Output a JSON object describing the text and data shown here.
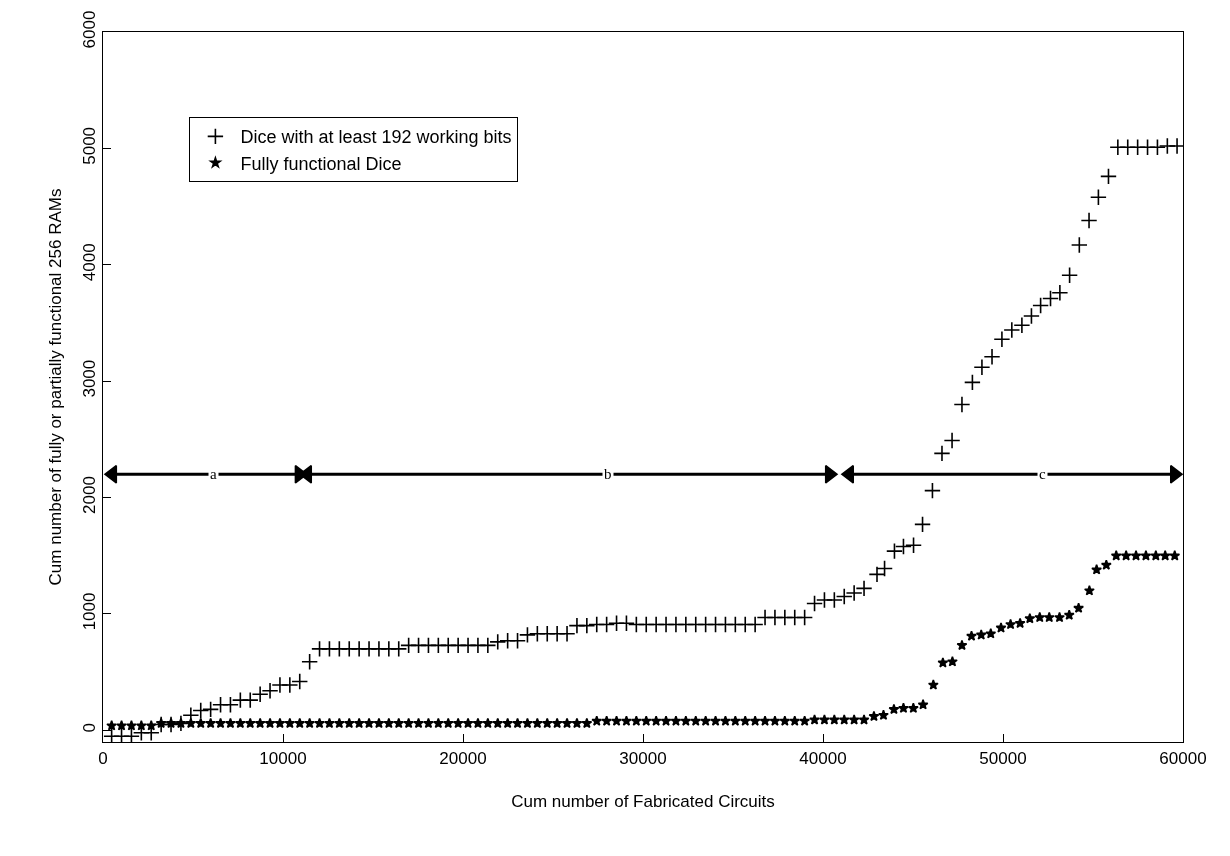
{
  "chart_data": {
    "type": "scatter",
    "xlabel": "Cum number of Fabricated Circuits",
    "ylabel": "Cum number of fully or partially functional 256 RAMs",
    "xlim": [
      0,
      60000
    ],
    "xticks": [
      0,
      10000,
      20000,
      30000,
      40000,
      50000,
      60000
    ],
    "ylim": [
      -100,
      6000
    ],
    "yticks": [
      0,
      1000,
      2000,
      3000,
      4000,
      5000,
      6000
    ],
    "legend": "top left",
    "series": [
      {
        "name": "Dice with at least 192 working bits",
        "color": "#000000",
        "marker": "cross",
        "x": [
          480,
          1030,
          1580,
          2130,
          2680,
          3230,
          3780,
          4330,
          4880,
          5430,
          5980,
          6530,
          7080,
          7630,
          8180,
          8730,
          9280,
          9830,
          10380,
          10930,
          11480,
          12030,
          12580,
          13130,
          13680,
          14230,
          14780,
          15330,
          15880,
          16430,
          16980,
          17530,
          18080,
          18630,
          19180,
          19730,
          20280,
          20830,
          21380,
          21930,
          22480,
          23030,
          23580,
          24130,
          24680,
          25230,
          25780,
          26330,
          26880,
          27430,
          27980,
          28530,
          29080,
          29630,
          30180,
          30730,
          31280,
          31830,
          32380,
          32930,
          33480,
          34030,
          34580,
          35130,
          35680,
          36230,
          36780,
          37330,
          37880,
          38430,
          38980,
          39530,
          40080,
          40630,
          41180,
          41730,
          42280,
          43000,
          43420,
          43970,
          44470,
          45030,
          45530,
          46080,
          46610,
          47170,
          47720,
          48300,
          48830,
          49390,
          49940,
          50490,
          51050,
          51580,
          52090,
          52640,
          53160,
          53700,
          54240,
          54780,
          55300,
          55860,
          56380,
          56930,
          57480,
          58030,
          58580,
          59130,
          59670
        ],
        "values": [
          -50,
          -50,
          -50,
          -20,
          -20,
          50,
          50,
          60,
          130,
          170,
          180,
          220,
          220,
          260,
          260,
          310,
          340,
          390,
          390,
          420,
          590,
          700,
          700,
          700,
          700,
          700,
          700,
          700,
          700,
          700,
          730,
          730,
          730,
          730,
          730,
          730,
          730,
          730,
          730,
          760,
          770,
          770,
          820,
          830,
          830,
          830,
          830,
          900,
          900,
          910,
          910,
          920,
          920,
          910,
          910,
          910,
          910,
          910,
          910,
          910,
          910,
          910,
          910,
          910,
          910,
          910,
          970,
          970,
          970,
          970,
          970,
          1090,
          1120,
          1120,
          1150,
          1180,
          1220,
          1340,
          1390,
          1540,
          1580,
          1590,
          1770,
          2060,
          2380,
          2490,
          2800,
          2990,
          3120,
          3210,
          3360,
          3440,
          3480,
          3560,
          3650,
          3710,
          3760,
          3910,
          4170,
          4380,
          4580,
          4760,
          5010,
          5010,
          5010,
          5010,
          5010,
          5020,
          5020
        ]
      },
      {
        "type": "line",
        "color": "#000000",
        "marker": "triangle",
        "x": [
          530,
          10900
        ],
        "values": [
          2200,
          2200
        ]
      },
      {
        "type": "line",
        "color": "#000000",
        "marker": "triangle",
        "x": [
          11360,
          40360
        ],
        "values": [
          2200,
          2200
        ]
      },
      {
        "type": "line",
        "color": "#000000",
        "marker": "triangle",
        "x": [
          41470,
          59530
        ],
        "values": [
          2200,
          2200
        ]
      },
      {
        "name": "Fully functional Dice",
        "color": "#000000",
        "marker": "star",
        "x": [
          480,
          1030,
          1580,
          2130,
          2680,
          3230,
          3780,
          4330,
          4880,
          5430,
          5980,
          6530,
          7080,
          7630,
          8180,
          8730,
          9280,
          9830,
          10380,
          10930,
          11480,
          12030,
          12580,
          13130,
          13680,
          14230,
          14780,
          15330,
          15880,
          16430,
          16980,
          17530,
          18080,
          18630,
          19180,
          19730,
          20280,
          20830,
          21380,
          21930,
          22480,
          23030,
          23580,
          24130,
          24680,
          25230,
          25780,
          26330,
          26880,
          27430,
          27980,
          28530,
          29080,
          29630,
          30180,
          30730,
          31280,
          31830,
          32380,
          32930,
          33480,
          34030,
          34580,
          35130,
          35680,
          36230,
          36780,
          37330,
          37880,
          38430,
          38980,
          39530,
          40080,
          40630,
          41180,
          41730,
          42280,
          42830,
          43360,
          43940,
          44470,
          45020,
          45560,
          46130,
          46660,
          47190,
          47720,
          48250,
          48790,
          49320,
          49890,
          50420,
          50950,
          51490,
          52040,
          52570,
          53140,
          53680,
          54200,
          54800,
          55200,
          55740,
          56290,
          56840,
          57390,
          57940,
          58490,
          59010,
          59540
        ],
        "values": [
          40,
          40,
          40,
          40,
          40,
          60,
          60,
          60,
          60,
          60,
          60,
          60,
          60,
          60,
          60,
          60,
          60,
          60,
          60,
          60,
          60,
          60,
          60,
          60,
          60,
          60,
          60,
          60,
          60,
          60,
          60,
          60,
          60,
          60,
          60,
          60,
          60,
          60,
          60,
          60,
          60,
          60,
          60,
          60,
          60,
          60,
          60,
          60,
          60,
          80,
          80,
          80,
          80,
          80,
          80,
          80,
          80,
          80,
          80,
          80,
          80,
          80,
          80,
          80,
          80,
          80,
          80,
          80,
          80,
          80,
          80,
          90,
          90,
          90,
          90,
          90,
          90,
          120,
          130,
          180,
          190,
          190,
          220,
          390,
          580,
          590,
          730,
          810,
          820,
          830,
          880,
          910,
          920,
          960,
          970,
          970,
          970,
          990,
          1050,
          1200,
          1380,
          1420,
          1500,
          1500,
          1500,
          1500,
          1500,
          1500,
          1500
        ]
      }
    ],
    "annotations": [
      {
        "text": "a",
        "x": 6140,
        "y": 2200
      },
      {
        "text": "b",
        "x": 28030,
        "y": 2200
      },
      {
        "text": "c",
        "x": 52200,
        "y": 2200
      }
    ]
  }
}
